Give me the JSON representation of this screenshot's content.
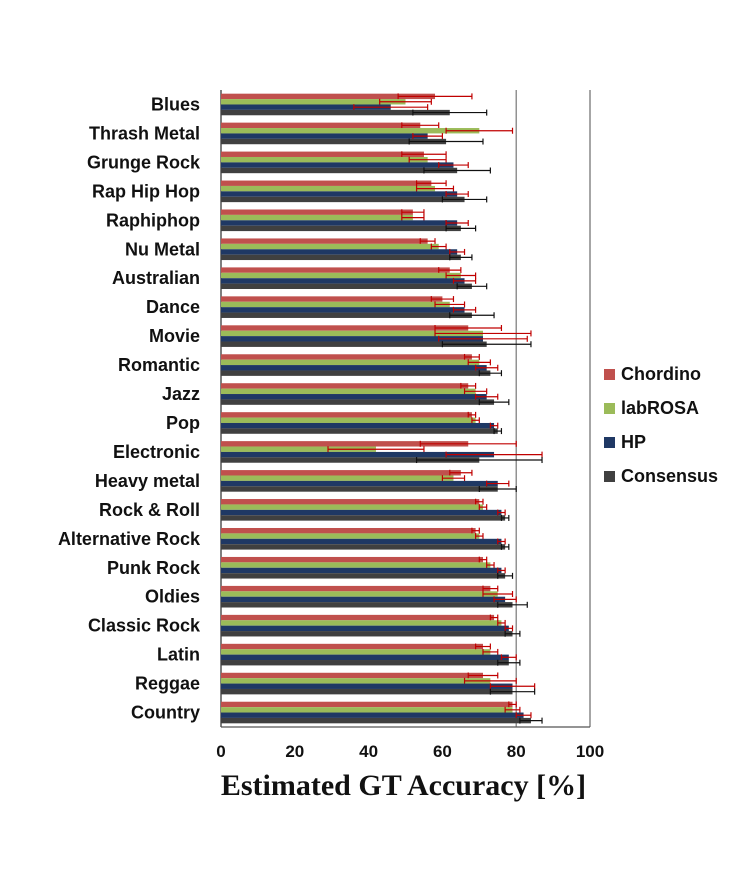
{
  "chart_data": {
    "type": "bar",
    "orientation": "horizontal",
    "title": "",
    "xlabel": "Estimated GT Accuracy [%]",
    "ylabel": "",
    "xlim": [
      0,
      100
    ],
    "xticks": [
      "0",
      "20",
      "40",
      "60",
      "80",
      "100"
    ],
    "grid": "vertical gridline at 80",
    "legend_position": "right",
    "categories": [
      "Blues",
      "Thrash Metal",
      "Grunge Rock",
      "Rap Hip Hop",
      "Raphiphop",
      "Nu Metal",
      "Australian",
      "Dance",
      "Movie",
      "Romantic",
      "Jazz",
      "Pop",
      "Electronic",
      "Heavy metal",
      "Rock & Roll",
      "Alternative Rock",
      "Punk Rock",
      "Oldies",
      "Classic Rock",
      "Latin",
      "Reggae",
      "Country"
    ],
    "series": [
      {
        "name": "Chordino",
        "color": "#c0504d",
        "values": [
          58,
          54,
          55,
          57,
          52,
          56,
          62,
          60,
          67,
          68,
          67,
          68,
          67,
          65,
          70,
          69,
          71,
          73,
          74,
          71,
          71,
          79
        ],
        "errors": [
          10,
          5,
          6,
          4,
          3,
          2,
          3,
          3,
          9,
          2,
          2,
          1,
          13,
          3,
          1,
          1,
          1,
          2,
          1,
          2,
          4,
          1
        ]
      },
      {
        "name": "labROSA",
        "color": "#9bbb59",
        "values": [
          50,
          70,
          56,
          58,
          52,
          59,
          65,
          62,
          71,
          70,
          69,
          69,
          42,
          63,
          71,
          70,
          73,
          75,
          76,
          73,
          73,
          79
        ],
        "errors": [
          7,
          9,
          5,
          5,
          3,
          2,
          4,
          4,
          13,
          3,
          3,
          1,
          13,
          3,
          1,
          1,
          1,
          4,
          1,
          2,
          7,
          2
        ]
      },
      {
        "name": "HP",
        "color": "#1f3864",
        "values": [
          46,
          56,
          63,
          64,
          64,
          64,
          66,
          66,
          71,
          72,
          72,
          74,
          74,
          75,
          76,
          76,
          76,
          77,
          78,
          78,
          79,
          82
        ],
        "errors": [
          10,
          4,
          4,
          3,
          3,
          2,
          3,
          3,
          12,
          3,
          3,
          1,
          13,
          3,
          1,
          1,
          1,
          3,
          1,
          2,
          6,
          2
        ]
      },
      {
        "name": "Consensus",
        "color": "#404040",
        "values": [
          62,
          61,
          64,
          66,
          65,
          65,
          68,
          68,
          72,
          73,
          74,
          75,
          70,
          75,
          77,
          77,
          77,
          79,
          79,
          78,
          79,
          84
        ],
        "errors": [
          10,
          10,
          9,
          6,
          4,
          3,
          4,
          6,
          12,
          3,
          4,
          1,
          17,
          5,
          1,
          1,
          2,
          4,
          2,
          3,
          6,
          3
        ]
      }
    ]
  }
}
